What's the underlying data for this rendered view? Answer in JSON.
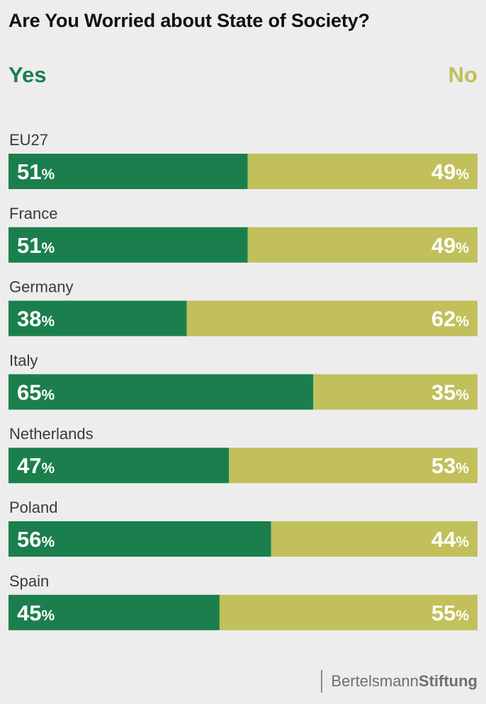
{
  "colors": {
    "yes": "#1b7f4d",
    "no": "#c1c05a",
    "background": "#ededed"
  },
  "footer": {
    "brand_light": "Bertelsmann",
    "brand_bold": "Stiftung"
  },
  "chart_data": {
    "type": "bar",
    "orientation": "horizontal",
    "stacked": true,
    "title": "Are You Worried about State of Society?",
    "legend": [
      "Yes",
      "No"
    ],
    "percent_suffix": "%",
    "categories": [
      "EU27",
      "France",
      "Germany",
      "Italy",
      "Netherlands",
      "Poland",
      "Spain"
    ],
    "series": [
      {
        "name": "Yes",
        "values": [
          51,
          51,
          38,
          65,
          47,
          56,
          45
        ]
      },
      {
        "name": "No",
        "values": [
          49,
          49,
          62,
          35,
          53,
          44,
          55
        ]
      }
    ],
    "xlim": [
      0,
      100
    ]
  }
}
